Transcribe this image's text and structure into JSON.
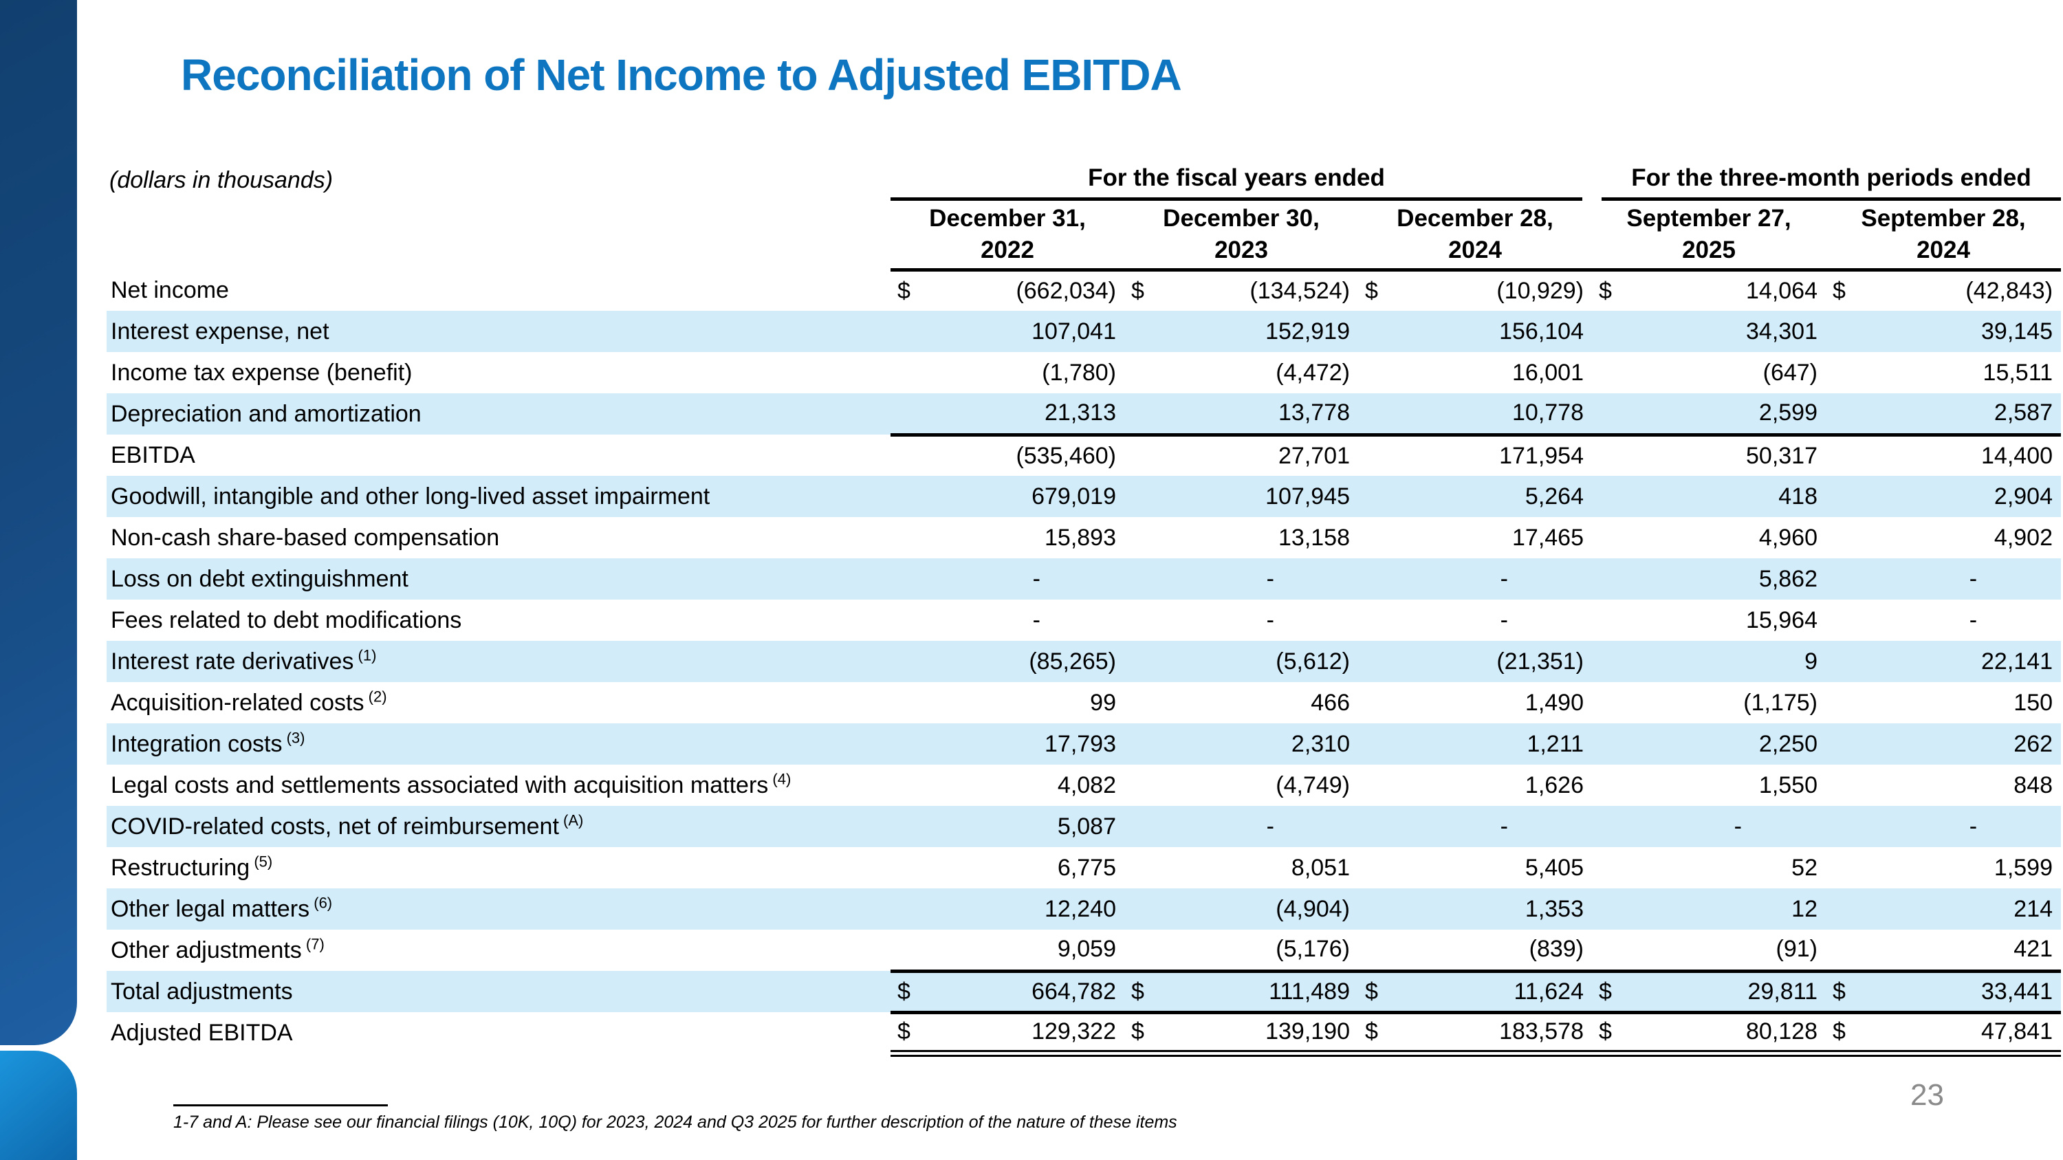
{
  "slide": {
    "title": "Reconciliation of Net Income to Adjusted EBITDA",
    "units_label": "(dollars in thousands)",
    "footnote": "1-7 and A: Please see our financial filings (10K, 10Q) for 2023, 2024 and Q3 2025 for further description of the nature of these items",
    "page_number": "23"
  },
  "colors": {
    "title_blue": "#0e75c0",
    "row_band_blue": "#d2ecfa",
    "sidebar_dark_top": "#11406f",
    "sidebar_dark_bottom": "#1e5fa3",
    "sidebar_light_top": "#1b95dd",
    "sidebar_light_bottom": "#0e67ab",
    "page_number_gray": "#8a8a8a"
  },
  "table": {
    "group_headers": [
      {
        "label": "For the fiscal years ended",
        "span": 3
      },
      {
        "label": "For the three-month periods ended",
        "span": 2
      }
    ],
    "columns": [
      {
        "line1": "December 31,",
        "line2": "2022"
      },
      {
        "line1": "December 30,",
        "line2": "2023"
      },
      {
        "line1": "December 28,",
        "line2": "2024"
      },
      {
        "line1": "September 27,",
        "line2": "2025"
      },
      {
        "line1": "September 28,",
        "line2": "2024"
      }
    ],
    "rows": [
      {
        "label": "Net income",
        "sup": "",
        "dollar": true,
        "shaded": false,
        "border": "none",
        "values": [
          "(662,034)",
          "(134,524)",
          "(10,929)",
          "14,064",
          "(42,843)"
        ]
      },
      {
        "label": "Interest expense, net",
        "sup": "",
        "dollar": false,
        "shaded": true,
        "border": "none",
        "values": [
          "107,041",
          "152,919",
          "156,104",
          "34,301",
          "39,145"
        ]
      },
      {
        "label": "Income tax expense (benefit)",
        "sup": "",
        "dollar": false,
        "shaded": false,
        "border": "none",
        "values": [
          "(1,780)",
          "(4,472)",
          "16,001",
          "(647)",
          "15,511"
        ]
      },
      {
        "label": "Depreciation and amortization",
        "sup": "",
        "dollar": false,
        "shaded": true,
        "border": "solid",
        "values": [
          "21,313",
          "13,778",
          "10,778",
          "2,599",
          "2,587"
        ]
      },
      {
        "label": "EBITDA",
        "sup": "",
        "dollar": false,
        "shaded": false,
        "border": "none",
        "values": [
          "(535,460)",
          "27,701",
          "171,954",
          "50,317",
          "14,400"
        ]
      },
      {
        "label": "Goodwill, intangible and other long-lived asset impairment",
        "sup": "",
        "dollar": false,
        "shaded": true,
        "border": "none",
        "values": [
          "679,019",
          "107,945",
          "5,264",
          "418",
          "2,904"
        ]
      },
      {
        "label": "Non-cash share-based compensation",
        "sup": "",
        "dollar": false,
        "shaded": false,
        "border": "none",
        "values": [
          "15,893",
          "13,158",
          "17,465",
          "4,960",
          "4,902"
        ]
      },
      {
        "label": "Loss on debt extinguishment",
        "sup": "",
        "dollar": false,
        "shaded": true,
        "border": "none",
        "values": [
          "-",
          "-",
          "-",
          "5,862",
          "-"
        ]
      },
      {
        "label": "Fees related to debt modifications",
        "sup": "",
        "dollar": false,
        "shaded": false,
        "border": "none",
        "values": [
          "-",
          "-",
          "-",
          "15,964",
          "-"
        ]
      },
      {
        "label": "Interest rate derivatives",
        "sup": "(1)",
        "dollar": false,
        "shaded": true,
        "border": "none",
        "values": [
          "(85,265)",
          "(5,612)",
          "(21,351)",
          "9",
          "22,141"
        ]
      },
      {
        "label": "Acquisition-related costs",
        "sup": "(2)",
        "dollar": false,
        "shaded": false,
        "border": "none",
        "values": [
          "99",
          "466",
          "1,490",
          "(1,175)",
          "150"
        ]
      },
      {
        "label": "Integration costs",
        "sup": "(3)",
        "dollar": false,
        "shaded": true,
        "border": "none",
        "values": [
          "17,793",
          "2,310",
          "1,211",
          "2,250",
          "262"
        ]
      },
      {
        "label": "Legal costs and settlements associated with acquisition matters",
        "sup": "(4)",
        "dollar": false,
        "shaded": false,
        "border": "none",
        "values": [
          "4,082",
          "(4,749)",
          "1,626",
          "1,550",
          "848"
        ]
      },
      {
        "label": "COVID-related costs, net of reimbursement",
        "sup": "(A)",
        "dollar": false,
        "shaded": true,
        "border": "none",
        "values": [
          "5,087",
          "-",
          "-",
          "-",
          "-"
        ]
      },
      {
        "label": "Restructuring",
        "sup": "(5)",
        "dollar": false,
        "shaded": false,
        "border": "none",
        "values": [
          "6,775",
          "8,051",
          "5,405",
          "52",
          "1,599"
        ]
      },
      {
        "label": "Other legal matters",
        "sup": "(6)",
        "dollar": false,
        "shaded": true,
        "border": "none",
        "values": [
          "12,240",
          "(4,904)",
          "1,353",
          "12",
          "214"
        ]
      },
      {
        "label": "Other adjustments",
        "sup": "(7)",
        "dollar": false,
        "shaded": false,
        "border": "solid2",
        "values": [
          "9,059",
          "(5,176)",
          "(839)",
          "(91)",
          "421"
        ]
      },
      {
        "label": "Total adjustments",
        "sup": "",
        "dollar": true,
        "shaded": true,
        "border": "solid2",
        "values": [
          "664,782",
          "111,489",
          "11,624",
          "29,811",
          "33,441"
        ]
      },
      {
        "label": "Adjusted EBITDA",
        "sup": "",
        "dollar": true,
        "shaded": false,
        "border": "double",
        "values": [
          "129,322",
          "139,190",
          "183,578",
          "80,128",
          "47,841"
        ]
      }
    ]
  }
}
